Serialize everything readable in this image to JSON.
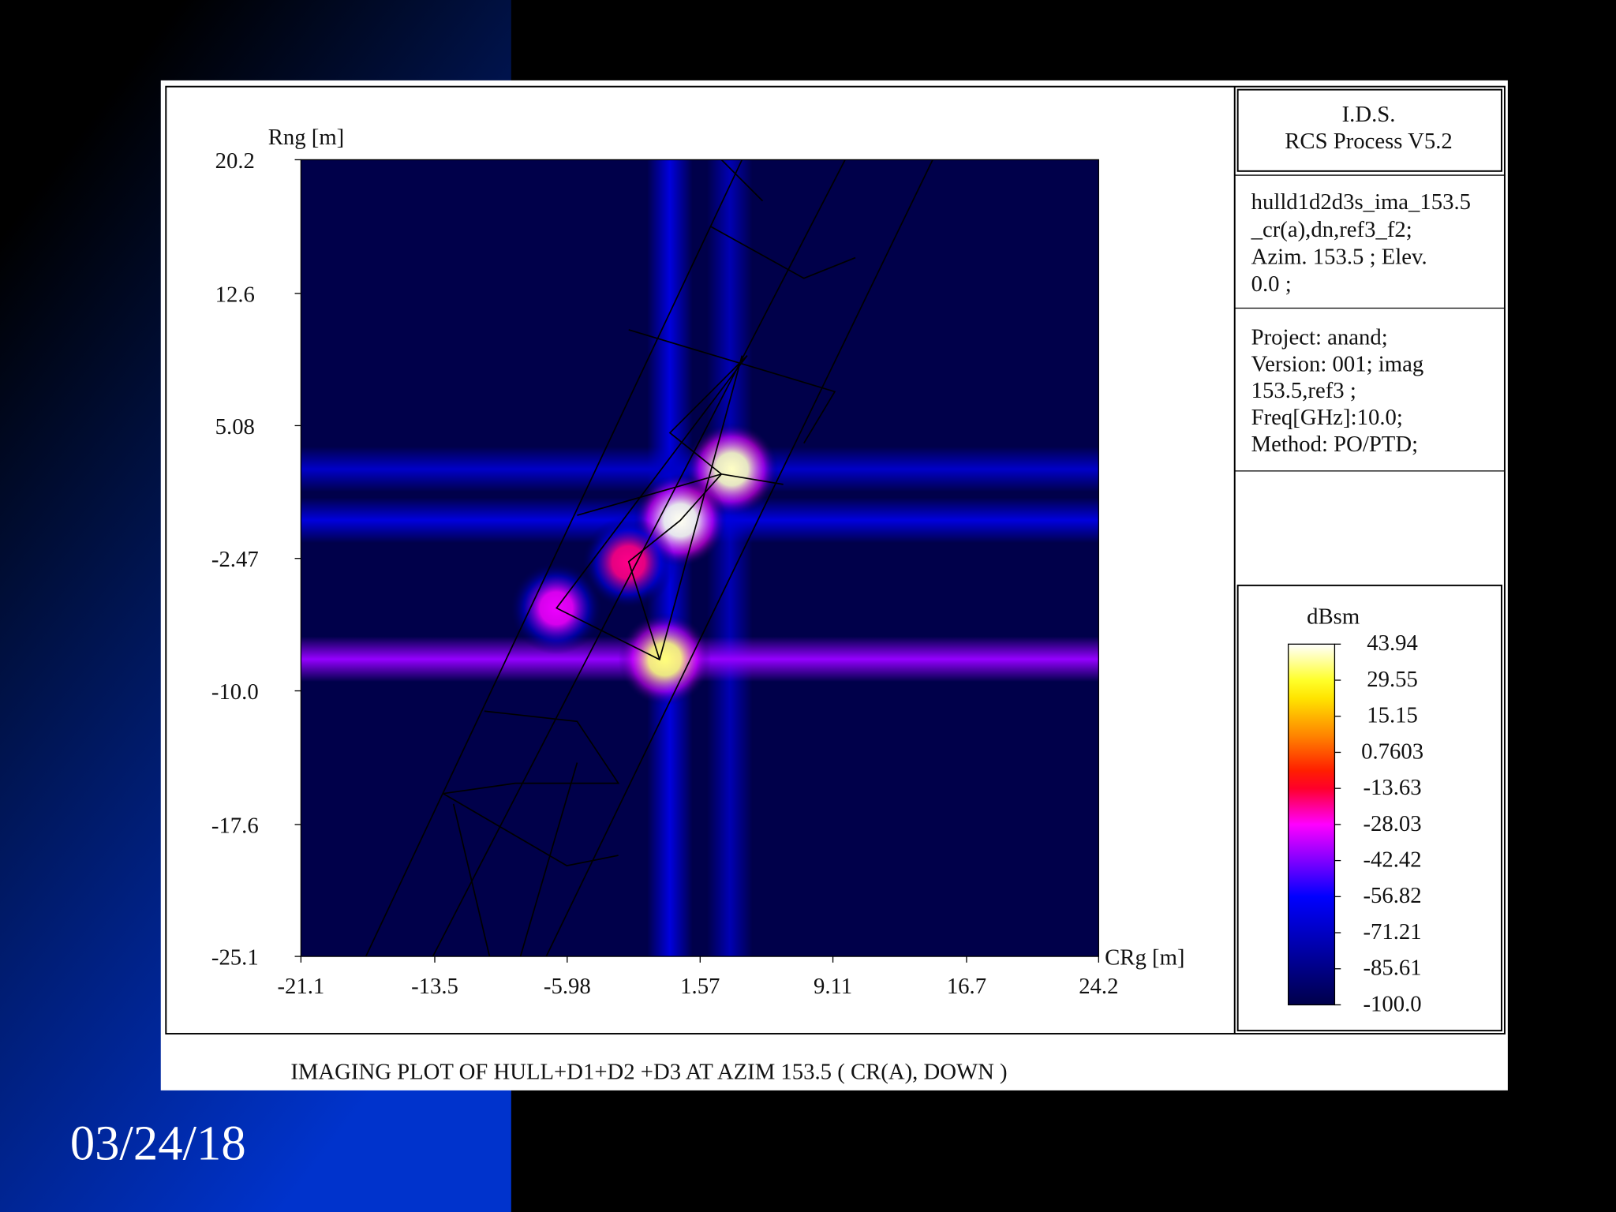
{
  "chart_data": {
    "type": "heatmap",
    "title": "IMAGING PLOT OF HULL+D1+D2 +D3  AT AZIM 153.5 ( CR(A), DOWN )",
    "xlabel": "CRg [m]",
    "ylabel": "Rng [m]",
    "xlim": [
      -21.1,
      24.2
    ],
    "ylim": [
      -25.1,
      20.2
    ],
    "xticks": [
      -21.1,
      -13.5,
      -5.98,
      1.57,
      9.11,
      16.7,
      24.2
    ],
    "yticks": [
      20.2,
      12.6,
      5.08,
      -2.47,
      {
        "value": -10,
        "label": "-10.0"
      },
      -17.6,
      -25.1
    ],
    "vertical_bands": {
      "x": [
        -0.15,
        3.25
      ],
      "values": [
        -65,
        -75
      ]
    },
    "horizontal_bands": {
      "y": [
        2.6,
        -0.3,
        -8.2
      ],
      "values": [
        -70,
        -65,
        -40
      ]
    },
    "hotspots": {
      "x": [
        3.36,
        0.44,
        -0.44,
        -6.6,
        -2.5
      ],
      "y": [
        2.6,
        -0.3,
        -8.2,
        -5.3,
        -2.7
      ],
      "values": [
        40,
        43,
        35,
        -30,
        -20
      ]
    },
    "colorbar": {
      "label": "dBsm",
      "lim": [
        -100,
        43.94
      ],
      "ticks": [
        43.94,
        29.55,
        15.15,
        0.7603,
        -13.63,
        -28.03,
        -42.42,
        -56.82,
        -71.21,
        -85.61,
        {
          "value": -100,
          "label": "-100.0"
        }
      ]
    },
    "header": [
      "I.D.S.",
      "RCS Process V5.2"
    ],
    "file_info": [
      "hulld1d2d3s_ima_153.5",
      "_cr(a),dn,ref3_f2;",
      "Azim. 153.5 ; Elev.",
      "0.0 ;"
    ],
    "project_info": [
      "Project: anand;",
      "Version: 001; imag",
      "153.5,ref3 ;",
      "Freq[GHz]:10.0;",
      "Method: PO/PTD;"
    ]
  },
  "slide": {
    "date": "03/24/18"
  }
}
